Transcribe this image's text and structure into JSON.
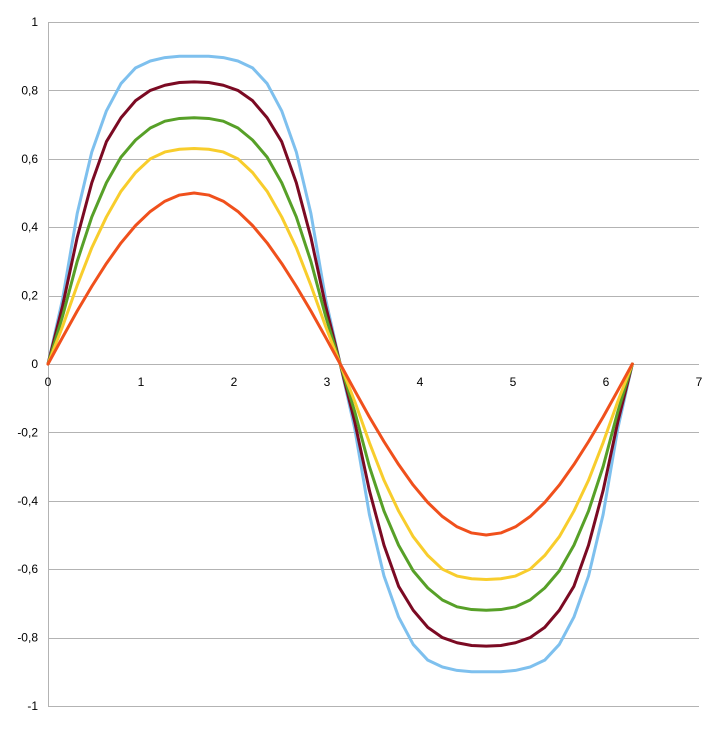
{
  "chart_data": {
    "type": "line",
    "title": "",
    "xlabel": "",
    "ylabel": "",
    "xlim": [
      0,
      7
    ],
    "ylim": [
      -1,
      1
    ],
    "grid": true,
    "legend": "none",
    "x_ticks": [
      0,
      1,
      2,
      3,
      4,
      5,
      6,
      7
    ],
    "x_tick_labels": [
      "0",
      "1",
      "2",
      "3",
      "4",
      "5",
      "6",
      "7"
    ],
    "y_ticks": [
      1,
      0.8,
      0.6,
      0.4,
      0.2,
      0,
      -0.2,
      -0.4,
      -0.6,
      -0.8,
      -1
    ],
    "y_tick_labels": [
      "1",
      "0,8",
      "0,6",
      "0,4",
      "0,2",
      "0",
      "-0,2",
      "-0,4",
      "-0,6",
      "-0,8",
      "-1"
    ],
    "x": [
      0,
      0.157,
      0.314,
      0.471,
      0.628,
      0.785,
      0.942,
      1.1,
      1.257,
      1.414,
      1.571,
      1.728,
      1.885,
      2.042,
      2.199,
      2.356,
      2.513,
      2.67,
      2.827,
      2.985,
      3.142,
      3.299,
      3.456,
      3.613,
      3.77,
      3.927,
      4.084,
      4.241,
      4.398,
      4.555,
      4.712,
      4.869,
      5.027,
      5.184,
      5.341,
      5.498,
      5.655,
      5.812,
      5.969,
      6.126,
      6.283
    ],
    "series": [
      {
        "color": "#7ec0ee",
        "values": [
          0,
          0.19,
          0.44,
          0.62,
          0.74,
          0.82,
          0.866,
          0.886,
          0.896,
          0.9,
          0.9,
          0.9,
          0.896,
          0.886,
          0.866,
          0.82,
          0.74,
          0.62,
          0.44,
          0.19,
          0,
          -0.19,
          -0.44,
          -0.62,
          -0.74,
          -0.82,
          -0.866,
          -0.886,
          -0.896,
          -0.9,
          -0.9,
          -0.9,
          -0.896,
          -0.886,
          -0.866,
          -0.82,
          -0.74,
          -0.62,
          -0.44,
          -0.19,
          0
        ]
      },
      {
        "color": "#7b0a23",
        "values": [
          0,
          0.17,
          0.37,
          0.53,
          0.65,
          0.72,
          0.77,
          0.8,
          0.815,
          0.823,
          0.825,
          0.823,
          0.815,
          0.8,
          0.77,
          0.72,
          0.65,
          0.53,
          0.37,
          0.17,
          0,
          -0.17,
          -0.37,
          -0.53,
          -0.65,
          -0.72,
          -0.77,
          -0.8,
          -0.815,
          -0.823,
          -0.825,
          -0.823,
          -0.815,
          -0.8,
          -0.77,
          -0.72,
          -0.65,
          -0.53,
          -0.37,
          -0.17,
          0
        ]
      },
      {
        "color": "#57a028",
        "values": [
          0,
          0.14,
          0.3,
          0.43,
          0.53,
          0.605,
          0.655,
          0.69,
          0.71,
          0.718,
          0.72,
          0.718,
          0.71,
          0.69,
          0.655,
          0.605,
          0.53,
          0.43,
          0.3,
          0.14,
          0,
          -0.14,
          -0.3,
          -0.43,
          -0.53,
          -0.605,
          -0.655,
          -0.69,
          -0.71,
          -0.718,
          -0.72,
          -0.718,
          -0.71,
          -0.69,
          -0.655,
          -0.605,
          -0.53,
          -0.43,
          -0.3,
          -0.14,
          0
        ]
      },
      {
        "color": "#f8cd2c",
        "values": [
          0,
          0.11,
          0.23,
          0.34,
          0.43,
          0.505,
          0.56,
          0.6,
          0.62,
          0.628,
          0.63,
          0.628,
          0.62,
          0.6,
          0.56,
          0.505,
          0.43,
          0.34,
          0.23,
          0.11,
          0,
          -0.11,
          -0.23,
          -0.34,
          -0.43,
          -0.505,
          -0.56,
          -0.6,
          -0.62,
          -0.628,
          -0.63,
          -0.628,
          -0.62,
          -0.6,
          -0.56,
          -0.505,
          -0.43,
          -0.34,
          -0.23,
          -0.11,
          0
        ]
      },
      {
        "color": "#f0501c",
        "values": [
          0,
          0.078,
          0.155,
          0.227,
          0.294,
          0.354,
          0.405,
          0.446,
          0.476,
          0.494,
          0.5,
          0.494,
          0.476,
          0.446,
          0.405,
          0.354,
          0.294,
          0.227,
          0.155,
          0.078,
          0,
          -0.078,
          -0.155,
          -0.227,
          -0.294,
          -0.354,
          -0.405,
          -0.446,
          -0.476,
          -0.494,
          -0.5,
          -0.494,
          -0.476,
          -0.446,
          -0.405,
          -0.354,
          -0.294,
          -0.227,
          -0.155,
          -0.078,
          0
        ]
      }
    ]
  }
}
